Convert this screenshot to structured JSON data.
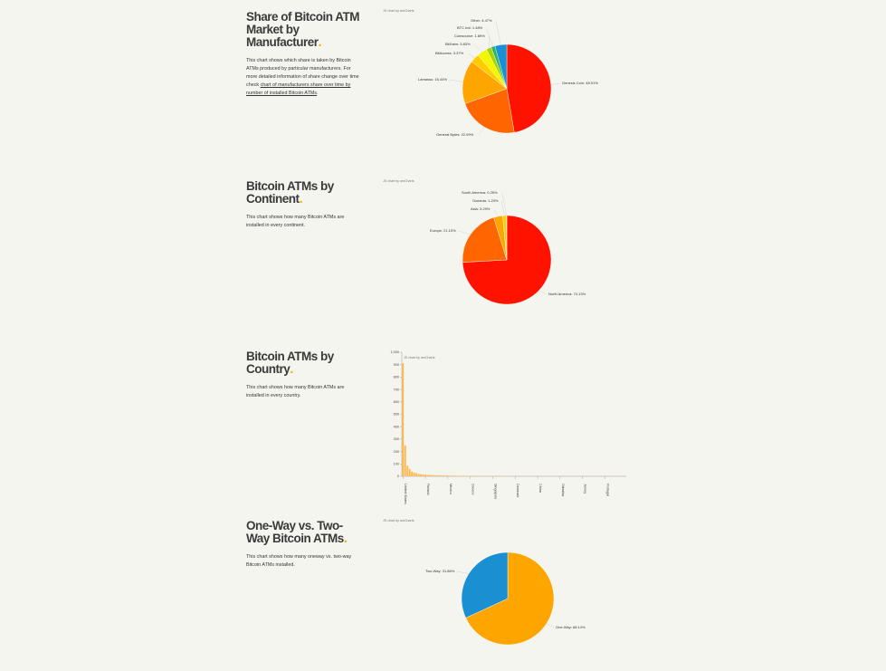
{
  "colors": {
    "background": "#f5f5f0",
    "accent_dot": "#f0b400",
    "pie": [
      "#ff1200",
      "#ff6600",
      "#ffa500",
      "#ffcc00",
      "#f5f500",
      "#a6d400",
      "#29b36b",
      "#1a8fd1"
    ],
    "bar": "#ffb84d",
    "axis": "#999999"
  },
  "credit": "JS chart by amCharts",
  "sections": [
    {
      "title": "Share of Bitcoin ATM Market by Manufacturer",
      "dot": ".",
      "desc_before_link": "This chart shows which share is taken by Bitcoin ATMs produced by particular manufacturers. For more detailed information of share change over time check ",
      "desc_link": "chart of manufacturers share over time by number of installed Bitcoin ATMs",
      "desc_after_link": "."
    },
    {
      "title": "Bitcoin ATMs by Continent",
      "dot": ".",
      "desc": "This chart shows how many Bitcoin ATMs are installed in every continent."
    },
    {
      "title": "Bitcoin ATMs by Country",
      "dot": ".",
      "desc": "This chart shows how many Bitcoin ATMs are installed in every country."
    },
    {
      "title": "One-Way vs. Two-Way Bitcoin ATMs",
      "dot": ".",
      "desc": "This chart shows how many oneway vs. two-way Bitcoin ATMs installed."
    }
  ],
  "chart_data": [
    {
      "type": "pie",
      "title": "Share of Bitcoin ATM Market by Manufacturer",
      "slices": [
        {
          "label": "Genesis Coin: 48.91%",
          "value": 48.91,
          "color": "#ff1200"
        },
        {
          "label": "General Bytes: 22.99%",
          "value": 22.99,
          "color": "#ff6600"
        },
        {
          "label": "Lamassu: 16.44%",
          "value": 16.44,
          "color": "#ffa500"
        },
        {
          "label": "BitAccess: 3.37%",
          "value": 3.37,
          "color": "#ffcc00"
        },
        {
          "label": "BitXatm: 3.83%",
          "value": 3.83,
          "color": "#f5f500"
        },
        {
          "label": "Coinsource: 1.89%",
          "value": 1.89,
          "color": "#a6d400"
        },
        {
          "label": "BTC bot: 1.48%",
          "value": 1.48,
          "color": "#29b36b"
        },
        {
          "label": "Other: 4.47%",
          "value": 4.47,
          "color": "#1a8fd1"
        }
      ]
    },
    {
      "type": "pie",
      "title": "Bitcoin ATMs by Continent",
      "slices": [
        {
          "label": "North America: 74.13%",
          "value": 74.13,
          "color": "#ff1200"
        },
        {
          "label": "Europe: 21.10%",
          "value": 21.1,
          "color": "#ff6600"
        },
        {
          "label": "Asia: 3.29%",
          "value": 3.29,
          "color": "#ffa500"
        },
        {
          "label": "Oceania: 1.23%",
          "value": 1.23,
          "color": "#ffcc00"
        },
        {
          "label": "South America: 0.25%",
          "value": 0.25,
          "color": "#f5f500"
        }
      ]
    },
    {
      "type": "bar",
      "title": "Bitcoin ATMs by Country",
      "ylim": [
        0,
        1000
      ],
      "yticks": [
        "0",
        "100",
        "200",
        "300",
        "400",
        "500",
        "600",
        "700",
        "800",
        "900",
        "1,000"
      ],
      "values": [
        910,
        250,
        85,
        60,
        38,
        30,
        25,
        20,
        17,
        15,
        13,
        12,
        11,
        10,
        9,
        8,
        8,
        7,
        7,
        6,
        6,
        5,
        5,
        5,
        4,
        4,
        4,
        4,
        3,
        3,
        3,
        3,
        3,
        3,
        2,
        2,
        2,
        2,
        2,
        2,
        2,
        2,
        2,
        2,
        1,
        1,
        1,
        1,
        1,
        1,
        1,
        1,
        1,
        1,
        1,
        1,
        1,
        1,
        1,
        1,
        1,
        1,
        1,
        1,
        1,
        1,
        1,
        1,
        1,
        1,
        1,
        1,
        1,
        1,
        1,
        1,
        1,
        1,
        1,
        1,
        1,
        1,
        1,
        1,
        1,
        1,
        1,
        1,
        1,
        1,
        1,
        1,
        1,
        1,
        1,
        1,
        1,
        1,
        1,
        1
      ],
      "tick_labels": [
        "United States",
        "Finland",
        "Mexico",
        "Greece",
        "Singapore",
        "Denmark",
        "China",
        "Gibraltar",
        "Jersey",
        "Portugal"
      ]
    },
    {
      "type": "pie",
      "title": "One-Way vs. Two-Way Bitcoin ATMs",
      "slices": [
        {
          "label": "One-Way: 68.14%",
          "value": 68.14,
          "color": "#ffa500"
        },
        {
          "label": "Two-Way: 31.86%",
          "value": 31.86,
          "color": "#1a8fd1"
        }
      ]
    }
  ]
}
